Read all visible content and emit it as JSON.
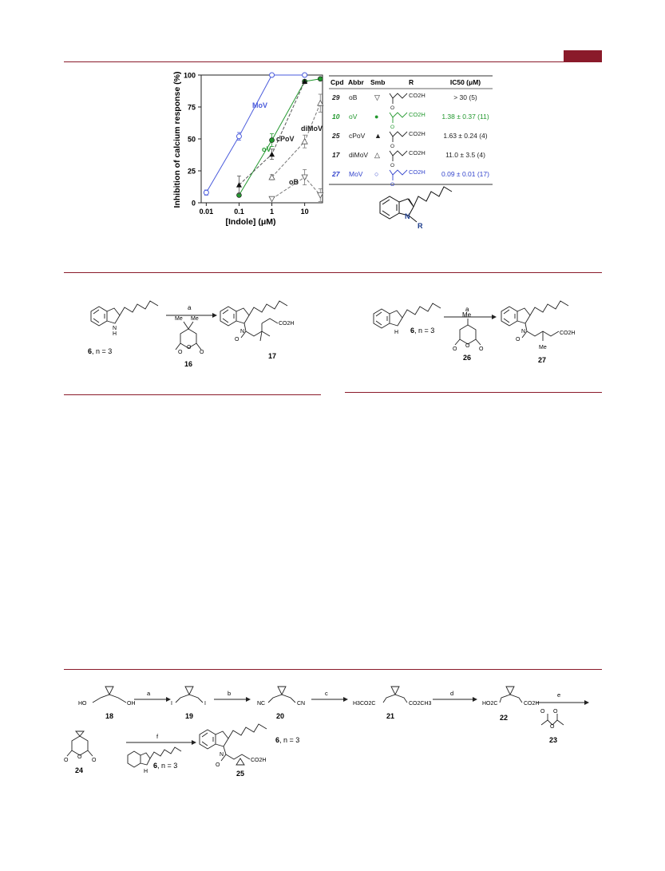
{
  "chart_data": {
    "type": "line",
    "xlabel": "[Indole] (μM)",
    "ylabel": "Inhibition of calcium response (%)",
    "x_scale": "log",
    "xlim": [
      0.007,
      35
    ],
    "ylim": [
      0,
      100
    ],
    "x_ticks": [
      "0.01",
      "0.1",
      "1",
      "10"
    ],
    "y_ticks": [
      "0",
      "25",
      "50",
      "75",
      "100"
    ],
    "series": [
      {
        "name": "MoV",
        "color": "#4a5bdc",
        "style": "solid",
        "marker": "open-circle",
        "x": [
          0.01,
          0.1,
          1,
          10
        ],
        "y": [
          8,
          52,
          100,
          100
        ],
        "err": [
          2,
          3,
          0,
          0
        ]
      },
      {
        "name": "oV",
        "color": "#22982e",
        "style": "solid",
        "marker": "filled-circle",
        "x": [
          0.1,
          1,
          10,
          30
        ],
        "y": [
          6,
          49,
          95,
          97
        ],
        "err": [
          0,
          5,
          0,
          0
        ]
      },
      {
        "name": "cPoV",
        "color": "#555555",
        "style": "dashed",
        "marker": "filled-triangle",
        "x": [
          0.1,
          1,
          10
        ],
        "y": [
          14,
          38,
          95
        ],
        "err": [
          7,
          4,
          0
        ]
      },
      {
        "name": "diMoV",
        "color": "#777777",
        "style": "dashed",
        "marker": "open-triangle",
        "x": [
          1,
          10,
          30
        ],
        "y": [
          20,
          48,
          78
        ],
        "err": [
          2,
          5,
          7
        ]
      },
      {
        "name": "oB",
        "color": "#777777",
        "style": "dashed",
        "marker": "open-triangle-down",
        "x": [
          1,
          10,
          30
        ],
        "y": [
          3,
          20,
          6
        ],
        "err": [
          0,
          6,
          5
        ]
      }
    ],
    "annotations": [
      "MoV",
      "cPoV",
      "oV",
      "diMoV",
      "oB"
    ]
  },
  "table": {
    "headers": [
      "Cpd",
      "Abbr",
      "Smb",
      "R",
      "IC50 (μM)"
    ],
    "rows": [
      {
        "cpd": "29",
        "abbr": "oB",
        "smb": "▽",
        "value": "> 30 (5)",
        "color": "#222222",
        "label": "CO2H"
      },
      {
        "cpd": "10",
        "abbr": "oV",
        "smb": "●",
        "value": "1.38 ± 0.37 (11)",
        "color": "#22982e",
        "label": "CO2H"
      },
      {
        "cpd": "25",
        "abbr": "cPoV",
        "smb": "▲",
        "value": "1.63 ± 0.24 (4)",
        "color": "#222222",
        "label": "CO2H"
      },
      {
        "cpd": "17",
        "abbr": "diMoV",
        "smb": "△",
        "value": "11.0 ± 3.5 (4)",
        "color": "#222222",
        "label": "CO2H"
      },
      {
        "cpd": "27",
        "abbr": "MoV",
        "smb": "○",
        "value": "0.09 ± 0.01 (17)",
        "color": "#3344cc",
        "label": "CO2H"
      }
    ],
    "core_label": "R"
  },
  "scheme1": {
    "step": "a",
    "start_label": "6",
    "start_note": ", n = 3",
    "reagent": "16",
    "product": "17",
    "me1": "Me",
    "me2": "Me",
    "co2h": "CO2H",
    "nh": "H",
    "n": "N"
  },
  "scheme2": {
    "step": "a",
    "start_label": "6",
    "start_note": ", n = 3",
    "reagent": "26",
    "product": "27",
    "me": "Me",
    "me_prod": "Me",
    "co2h": "CO2H"
  },
  "scheme3": {
    "steps": [
      "a",
      "b",
      "c",
      "d",
      "e",
      "f"
    ],
    "compounds": [
      "18",
      "19",
      "20",
      "21",
      "22",
      "23",
      "24",
      "25"
    ],
    "ho_left": "HO",
    "oh_right": "OH",
    "i": "I",
    "nc": "NC",
    "cn": "CN",
    "ester_left": "H3CO2C",
    "ester_right": "CO2CH3",
    "acid_left": "HO2C",
    "acid_right": "CO2H",
    "start_label": "6",
    "start_note": ", n = 3",
    "note2": ", n = 3"
  }
}
